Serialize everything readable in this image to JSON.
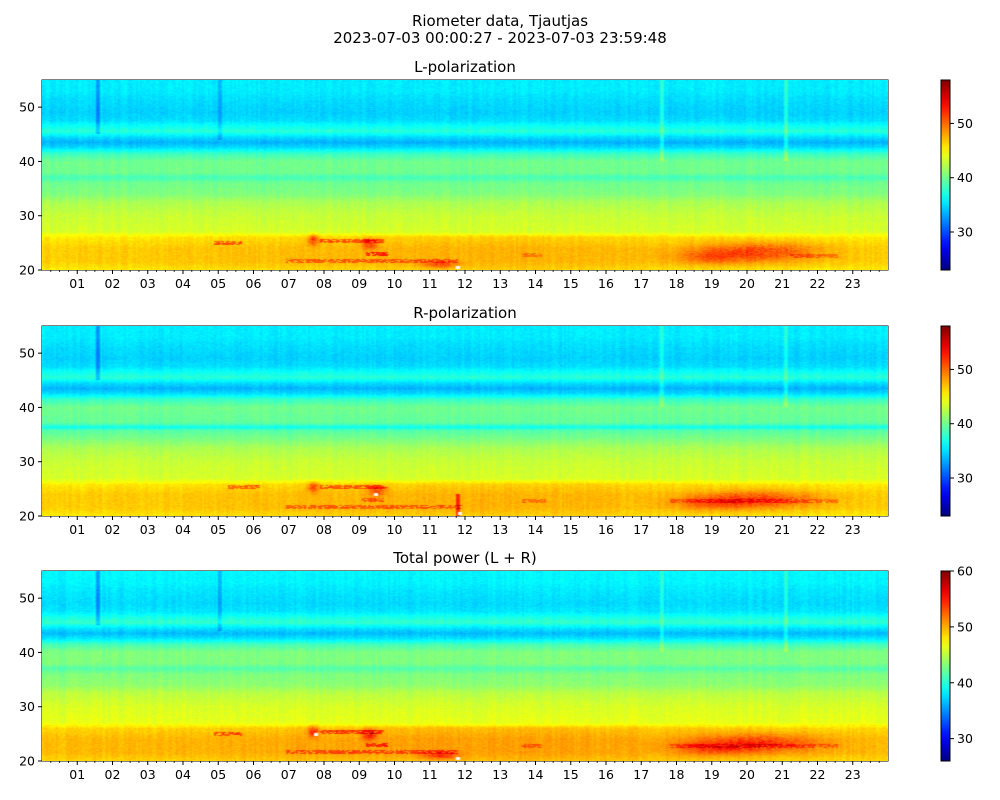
{
  "figure": {
    "title_line1": "Riometer data, Tjautjas",
    "title_line2": "2023-07-03 00:00:27 - 2023-07-03 23:59:48"
  },
  "chart_data": [
    {
      "type": "heatmap",
      "title": "L-polarization",
      "xlabel": "",
      "ylabel": "",
      "x_range_hours": [
        0,
        24
      ],
      "ylim": [
        20,
        55
      ],
      "y_ticks": [
        20,
        30,
        40,
        50
      ],
      "x_tick_labels": [
        "01",
        "02",
        "03",
        "04",
        "05",
        "06",
        "07",
        "08",
        "09",
        "10",
        "11",
        "12",
        "13",
        "14",
        "15",
        "16",
        "17",
        "18",
        "19",
        "20",
        "21",
        "22",
        "23"
      ],
      "colormap": "jet",
      "color_range": [
        23,
        58
      ],
      "colorbar_ticks": [
        30,
        40,
        50
      ],
      "y_profile": [
        {
          "y": 20,
          "v": 46
        },
        {
          "y": 21.5,
          "v": 47
        },
        {
          "y": 24,
          "v": 47
        },
        {
          "y": 26,
          "v": 46
        },
        {
          "y": 27,
          "v": 43.5
        },
        {
          "y": 30,
          "v": 43
        },
        {
          "y": 32.5,
          "v": 42
        },
        {
          "y": 34,
          "v": 40.5
        },
        {
          "y": 36,
          "v": 40
        },
        {
          "y": 37,
          "v": 38.5
        },
        {
          "y": 38,
          "v": 40
        },
        {
          "y": 40,
          "v": 40
        },
        {
          "y": 41.5,
          "v": 38
        },
        {
          "y": 42.5,
          "v": 35
        },
        {
          "y": 43.5,
          "v": 33.5
        },
        {
          "y": 44.5,
          "v": 35
        },
        {
          "y": 45.5,
          "v": 37.5
        },
        {
          "y": 46.5,
          "v": 36.5
        },
        {
          "y": 47.5,
          "v": 35
        },
        {
          "y": 49,
          "v": 34.5
        },
        {
          "y": 51.5,
          "v": 35
        },
        {
          "y": 53,
          "v": 35.5
        },
        {
          "y": 55,
          "v": 35.5
        }
      ],
      "hotspots": [
        {
          "x": 20.3,
          "y": 23.3,
          "dx": 1.7,
          "dy": 1.8,
          "v": 4.5
        },
        {
          "x": 19.0,
          "y": 22.3,
          "dx": 1.0,
          "dy": 1.2,
          "v": 2.5
        },
        {
          "x": 7.7,
          "y": 25.5,
          "dx": 0.15,
          "dy": 1.0,
          "v": 5
        },
        {
          "x": 9.3,
          "y": 24.8,
          "dx": 0.2,
          "dy": 1.0,
          "v": 5
        },
        {
          "x": 11.3,
          "y": 21.0,
          "dx": 0.5,
          "dy": 0.6,
          "v": 4
        }
      ],
      "streaks": [
        {
          "x0": 4.9,
          "x1": 5.7,
          "y": 25.0,
          "v": 5
        },
        {
          "x0": 7.9,
          "x1": 9.7,
          "y": 25.3,
          "v": 5
        },
        {
          "x0": 6.9,
          "x1": 11.8,
          "y": 21.6,
          "v": 4
        },
        {
          "x0": 9.2,
          "x1": 9.8,
          "y": 23.0,
          "v": 6
        },
        {
          "x0": 13.6,
          "x1": 14.2,
          "y": 22.7,
          "v": 3
        },
        {
          "x0": 21.2,
          "x1": 22.6,
          "y": 22.6,
          "v": 3
        }
      ],
      "vlines": [
        {
          "x": 1.6,
          "y0": 45,
          "y1": 55,
          "v": -3
        },
        {
          "x": 17.6,
          "y0": 40,
          "y1": 55,
          "v": 2
        },
        {
          "x": 21.1,
          "y0": 40,
          "y1": 55,
          "v": 2
        },
        {
          "x": 5.05,
          "y0": 44,
          "y1": 55,
          "v": -2
        }
      ],
      "saturated": [
        {
          "x": 11.75,
          "y": 20.5
        }
      ]
    },
    {
      "type": "heatmap",
      "title": "R-polarization",
      "xlabel": "",
      "ylabel": "",
      "x_range_hours": [
        0,
        24
      ],
      "ylim": [
        20,
        55
      ],
      "y_ticks": [
        20,
        30,
        40,
        50
      ],
      "x_tick_labels": [
        "01",
        "02",
        "03",
        "04",
        "05",
        "06",
        "07",
        "08",
        "09",
        "10",
        "11",
        "12",
        "13",
        "14",
        "15",
        "16",
        "17",
        "18",
        "19",
        "20",
        "21",
        "22",
        "23"
      ],
      "colormap": "jet",
      "color_range": [
        23,
        58
      ],
      "colorbar_ticks": [
        30,
        40,
        50
      ],
      "y_profile": [
        {
          "y": 20,
          "v": 46
        },
        {
          "y": 21.5,
          "v": 47
        },
        {
          "y": 24,
          "v": 47
        },
        {
          "y": 25.8,
          "v": 46
        },
        {
          "y": 26.8,
          "v": 43.5
        },
        {
          "y": 30,
          "v": 43
        },
        {
          "y": 32.5,
          "v": 42
        },
        {
          "y": 34,
          "v": 40.5
        },
        {
          "y": 35.8,
          "v": 39
        },
        {
          "y": 36.3,
          "v": 36.5
        },
        {
          "y": 37.2,
          "v": 39.5
        },
        {
          "y": 40,
          "v": 40
        },
        {
          "y": 41.5,
          "v": 38
        },
        {
          "y": 42.5,
          "v": 35
        },
        {
          "y": 43.5,
          "v": 33.5
        },
        {
          "y": 44.5,
          "v": 35
        },
        {
          "y": 45.5,
          "v": 37.5
        },
        {
          "y": 46.5,
          "v": 36.5
        },
        {
          "y": 47.5,
          "v": 35
        },
        {
          "y": 49,
          "v": 34.5
        },
        {
          "y": 51.5,
          "v": 35
        },
        {
          "y": 53,
          "v": 35.5
        },
        {
          "y": 55,
          "v": 35.5
        }
      ],
      "hotspots": [
        {
          "x": 20.3,
          "y": 23.0,
          "dx": 1.7,
          "dy": 1.6,
          "v": 4.5
        },
        {
          "x": 19.0,
          "y": 22.3,
          "dx": 1.0,
          "dy": 1.2,
          "v": 2.5
        },
        {
          "x": 7.7,
          "y": 25.3,
          "dx": 0.15,
          "dy": 0.9,
          "v": 5
        },
        {
          "x": 9.5,
          "y": 24.6,
          "dx": 0.25,
          "dy": 0.9,
          "v": 4
        }
      ],
      "streaks": [
        {
          "x0": 5.3,
          "x1": 6.2,
          "y": 25.3,
          "v": 5
        },
        {
          "x0": 7.9,
          "x1": 9.8,
          "y": 25.3,
          "v": 5
        },
        {
          "x0": 6.9,
          "x1": 11.9,
          "y": 21.7,
          "v": 4
        },
        {
          "x0": 9.1,
          "x1": 9.7,
          "y": 23.0,
          "v": 4
        },
        {
          "x0": 13.6,
          "x1": 14.3,
          "y": 22.8,
          "v": 3
        },
        {
          "x0": 17.8,
          "x1": 22.6,
          "y": 22.8,
          "v": 3
        }
      ],
      "vlines": [
        {
          "x": 1.6,
          "y0": 45,
          "y1": 55,
          "v": -3
        },
        {
          "x": 17.6,
          "y0": 40,
          "y1": 55,
          "v": 2
        },
        {
          "x": 21.1,
          "y0": 40,
          "y1": 55,
          "v": 2
        },
        {
          "x": 11.8,
          "y0": 20,
          "y1": 24,
          "v": 5
        }
      ],
      "saturated": [
        {
          "x": 9.4,
          "y": 24.0
        },
        {
          "x": 11.8,
          "y": 20.5
        }
      ]
    },
    {
      "type": "heatmap",
      "title": "Total power (L + R)",
      "xlabel": "",
      "ylabel": "",
      "x_range_hours": [
        0,
        24
      ],
      "ylim": [
        20,
        55
      ],
      "y_ticks": [
        20,
        30,
        40,
        50
      ],
      "x_tick_labels": [
        "01",
        "02",
        "03",
        "04",
        "05",
        "06",
        "07",
        "08",
        "09",
        "10",
        "11",
        "12",
        "13",
        "14",
        "15",
        "16",
        "17",
        "18",
        "19",
        "20",
        "21",
        "22",
        "23"
      ],
      "colormap": "jet",
      "color_range": [
        26,
        60
      ],
      "colorbar_ticks": [
        30,
        40,
        50,
        60
      ],
      "y_profile": [
        {
          "y": 20,
          "v": 49
        },
        {
          "y": 21.5,
          "v": 50
        },
        {
          "y": 24,
          "v": 50
        },
        {
          "y": 26,
          "v": 49
        },
        {
          "y": 27,
          "v": 46.5
        },
        {
          "y": 30,
          "v": 46
        },
        {
          "y": 32.5,
          "v": 45
        },
        {
          "y": 34,
          "v": 43.5
        },
        {
          "y": 36,
          "v": 43
        },
        {
          "y": 37,
          "v": 41.5
        },
        {
          "y": 38,
          "v": 43
        },
        {
          "y": 40,
          "v": 43
        },
        {
          "y": 41.5,
          "v": 41
        },
        {
          "y": 42.5,
          "v": 38
        },
        {
          "y": 43.5,
          "v": 36.5
        },
        {
          "y": 44.5,
          "v": 38
        },
        {
          "y": 45.5,
          "v": 40.5
        },
        {
          "y": 46.5,
          "v": 39.5
        },
        {
          "y": 47.5,
          "v": 38
        },
        {
          "y": 49,
          "v": 37.5
        },
        {
          "y": 51.5,
          "v": 38
        },
        {
          "y": 53,
          "v": 38.5
        },
        {
          "y": 55,
          "v": 38.5
        }
      ],
      "hotspots": [
        {
          "x": 20.3,
          "y": 23.2,
          "dx": 1.7,
          "dy": 1.7,
          "v": 4.5
        },
        {
          "x": 19.0,
          "y": 22.3,
          "dx": 1.0,
          "dy": 1.2,
          "v": 2.5
        },
        {
          "x": 7.7,
          "y": 25.4,
          "dx": 0.15,
          "dy": 1.0,
          "v": 5
        },
        {
          "x": 9.3,
          "y": 24.8,
          "dx": 0.2,
          "dy": 1.0,
          "v": 5
        },
        {
          "x": 11.3,
          "y": 21.0,
          "dx": 0.5,
          "dy": 0.6,
          "v": 4
        }
      ],
      "streaks": [
        {
          "x0": 4.9,
          "x1": 5.7,
          "y": 25.0,
          "v": 5
        },
        {
          "x0": 7.9,
          "x1": 9.7,
          "y": 25.3,
          "v": 5
        },
        {
          "x0": 6.9,
          "x1": 11.8,
          "y": 21.6,
          "v": 4
        },
        {
          "x0": 9.2,
          "x1": 9.8,
          "y": 23.0,
          "v": 5
        },
        {
          "x0": 13.6,
          "x1": 14.2,
          "y": 22.8,
          "v": 3
        },
        {
          "x0": 17.8,
          "x1": 22.6,
          "y": 22.7,
          "v": 3
        }
      ],
      "vlines": [
        {
          "x": 1.6,
          "y0": 45,
          "y1": 55,
          "v": -3
        },
        {
          "x": 17.6,
          "y0": 40,
          "y1": 55,
          "v": 2
        },
        {
          "x": 21.1,
          "y0": 40,
          "y1": 55,
          "v": 2
        },
        {
          "x": 5.05,
          "y0": 44,
          "y1": 55,
          "v": -2
        }
      ],
      "saturated": [
        {
          "x": 7.7,
          "y": 25.0
        },
        {
          "x": 11.75,
          "y": 20.5
        }
      ]
    }
  ]
}
